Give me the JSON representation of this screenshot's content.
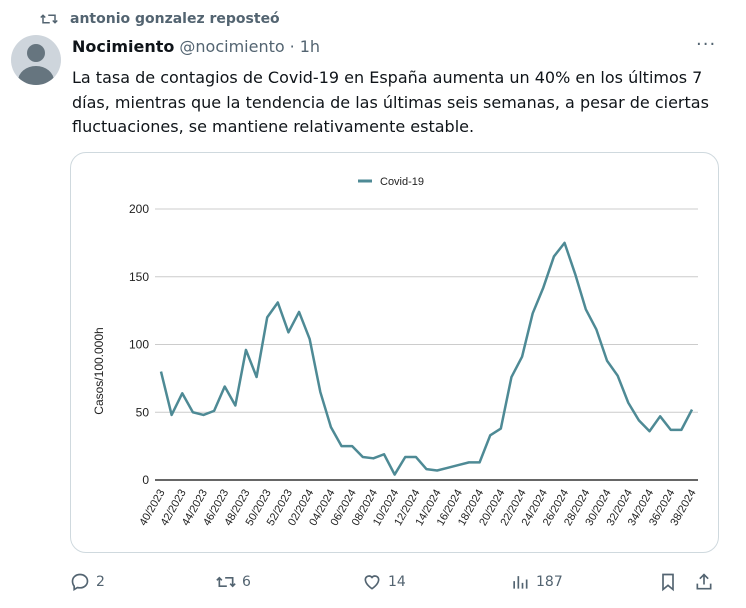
{
  "repost": {
    "label": "antonio gonzalez reposteó"
  },
  "tweet": {
    "name": "Nocimiento",
    "handle": "@nocimiento",
    "separator": "·",
    "time": "1h",
    "text": "La tasa de contagios de Covid-19 en España aumenta un 40% en los últimos 7 días, mientras que la tendencia de las últimas seis semanas, a pesar de ciertas fluctuaciones, se mantiene relativamente estable."
  },
  "actions": {
    "replies": "2",
    "reposts": "6",
    "likes": "14",
    "views": "187"
  },
  "colors": {
    "line": "#4e8a95",
    "grid": "#cccccc"
  },
  "chart_data": {
    "type": "line",
    "title": "",
    "legend": {
      "entries": [
        "Covid-19"
      ],
      "placement": "top-center"
    },
    "xlabel": "",
    "ylabel": "Casos/100.000h",
    "ylim": [
      0,
      200
    ],
    "yticks": [
      0,
      50,
      100,
      150,
      200
    ],
    "grid": true,
    "x": [
      "40/2023",
      "41/2023",
      "42/2023",
      "43/2023",
      "44/2023",
      "45/2023",
      "46/2023",
      "47/2023",
      "48/2023",
      "49/2023",
      "50/2023",
      "51/2023",
      "52/2023",
      "01/2024",
      "02/2024",
      "03/2024",
      "04/2024",
      "05/2024",
      "06/2024",
      "07/2024",
      "08/2024",
      "09/2024",
      "10/2024",
      "11/2024",
      "12/2024",
      "13/2024",
      "14/2024",
      "15/2024",
      "16/2024",
      "17/2024",
      "18/2024",
      "19/2024",
      "20/2024",
      "21/2024",
      "22/2024",
      "23/2024",
      "24/2024",
      "25/2024",
      "26/2024",
      "27/2024",
      "28/2024",
      "29/2024",
      "30/2024",
      "31/2024",
      "32/2024",
      "33/2024",
      "34/2024",
      "35/2024",
      "36/2024",
      "37/2024",
      "38/2024"
    ],
    "xtick_labels": [
      "40/2023",
      "42/2023",
      "44/2023",
      "46/2023",
      "48/2023",
      "50/2023",
      "52/2023",
      "02/2024",
      "04/2024",
      "06/2024",
      "08/2024",
      "10/2024",
      "12/2024",
      "14/2024",
      "16/2024",
      "18/2024",
      "20/2024",
      "22/2024",
      "24/2024",
      "26/2024",
      "28/2024",
      "30/2024",
      "32/2024",
      "34/2024",
      "36/2024",
      "38/2024"
    ],
    "series": [
      {
        "name": "Covid-19",
        "values": [
          80,
          48,
          64,
          50,
          48,
          51,
          69,
          55,
          96,
          76,
          120,
          131,
          109,
          124,
          104,
          65,
          39,
          25,
          25,
          17,
          16,
          19,
          4,
          17,
          17,
          8,
          7,
          9,
          11,
          13,
          13,
          33,
          38,
          76,
          91,
          123,
          142,
          165,
          175,
          152,
          126,
          111,
          88,
          77,
          57,
          44,
          36,
          47,
          37,
          37,
          52
        ]
      }
    ]
  }
}
